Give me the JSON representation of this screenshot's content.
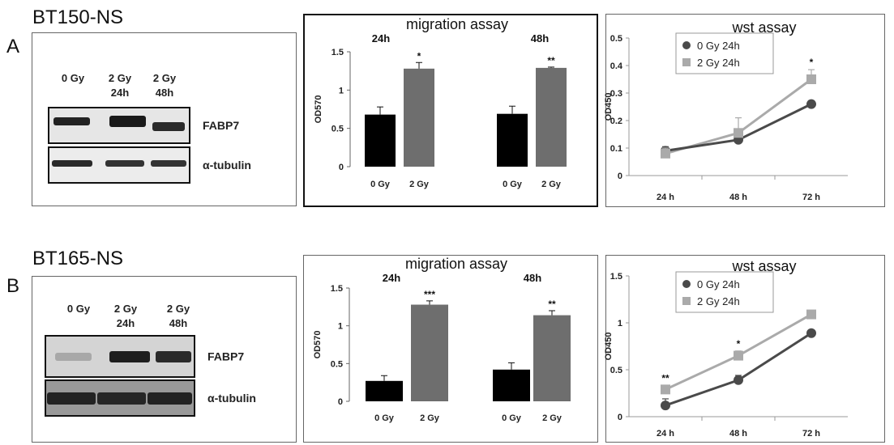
{
  "chart_data": [
    {
      "panel": "A",
      "cell_line": "BT150-NS",
      "blot": {
        "lanes": [
          "0 Gy",
          "2 Gy\n24h",
          "2 Gy\n48h"
        ],
        "bands": [
          "FABP7",
          "α-tubulin"
        ]
      },
      "migration": {
        "type": "bar",
        "title": "migration assay",
        "ylabel": "OD570",
        "ylim": [
          0,
          1.5
        ],
        "yticks": [
          "0",
          "0.5",
          "1",
          "1.5"
        ],
        "groups": [
          {
            "label": "24h",
            "categories": [
              "0 Gy",
              "2 Gy"
            ],
            "values": [
              0.68,
              1.28
            ],
            "errors": [
              0.1,
              0.08
            ],
            "sig": [
              "",
              "*"
            ]
          },
          {
            "label": "48h",
            "categories": [
              "0 Gy",
              "2 Gy"
            ],
            "values": [
              0.69,
              1.29
            ],
            "errors": [
              0.1,
              0.01
            ],
            "sig": [
              "",
              "**"
            ]
          }
        ],
        "colors": [
          "#000000",
          "#6e6e6e"
        ]
      },
      "wst": {
        "type": "line",
        "title": "wst assay",
        "ylabel": "OD450",
        "categories": [
          "24 h",
          "48 h",
          "72 h"
        ],
        "ylim": [
          0,
          0.5
        ],
        "yticks": [
          "0",
          "0.1",
          "0.2",
          "0.3",
          "0.4",
          "0.5"
        ],
        "series": [
          {
            "name": "0 Gy 24h",
            "values": [
              0.09,
              0.13,
              0.26
            ],
            "errors": [
              0.015,
              0.015,
              0.005
            ],
            "color": "#4a4a4a",
            "marker": "circle"
          },
          {
            "name": "2 Gy 24h",
            "values": [
              0.08,
              0.155,
              0.35
            ],
            "errors": [
              0.02,
              0.055,
              0.035
            ],
            "color": "#aaaaaa",
            "marker": "square"
          }
        ],
        "sig": [
          "",
          "",
          "*"
        ]
      }
    },
    {
      "panel": "B",
      "cell_line": "BT165-NS",
      "blot": {
        "lanes": [
          "0 Gy",
          "2 Gy\n24h",
          "2 Gy\n48h"
        ],
        "bands": [
          "FABP7",
          "α-tubulin"
        ]
      },
      "migration": {
        "type": "bar",
        "title": "migration assay",
        "ylabel": "OD570",
        "ylim": [
          0,
          1.5
        ],
        "yticks": [
          "0",
          "0.5",
          "1",
          "1.5"
        ],
        "groups": [
          {
            "label": "24h",
            "categories": [
              "0 Gy",
              "2 Gy"
            ],
            "values": [
              0.27,
              1.28
            ],
            "errors": [
              0.07,
              0.05
            ],
            "sig": [
              "",
              "***"
            ]
          },
          {
            "label": "48h",
            "categories": [
              "0 Gy",
              "2 Gy"
            ],
            "values": [
              0.42,
              1.14
            ],
            "errors": [
              0.09,
              0.06
            ],
            "sig": [
              "",
              "**"
            ]
          }
        ],
        "colors": [
          "#000000",
          "#6e6e6e"
        ]
      },
      "wst": {
        "type": "line",
        "title": "wst assay",
        "ylabel": "OD450",
        "categories": [
          "24 h",
          "48 h",
          "72 h"
        ],
        "ylim": [
          0,
          1.5
        ],
        "yticks": [
          "0",
          "0.5",
          "1",
          "1.5"
        ],
        "series": [
          {
            "name": "0 Gy 24h",
            "values": [
              0.12,
              0.39,
              0.89
            ],
            "errors": [
              0.07,
              0.05,
              0.02
            ],
            "color": "#4a4a4a",
            "marker": "circle"
          },
          {
            "name": "2 Gy 24h",
            "values": [
              0.29,
              0.65,
              1.09
            ],
            "errors": [
              0.04,
              0.05,
              0.02
            ],
            "color": "#aaaaaa",
            "marker": "square"
          }
        ],
        "sig": [
          "**",
          "*",
          ""
        ]
      }
    }
  ]
}
